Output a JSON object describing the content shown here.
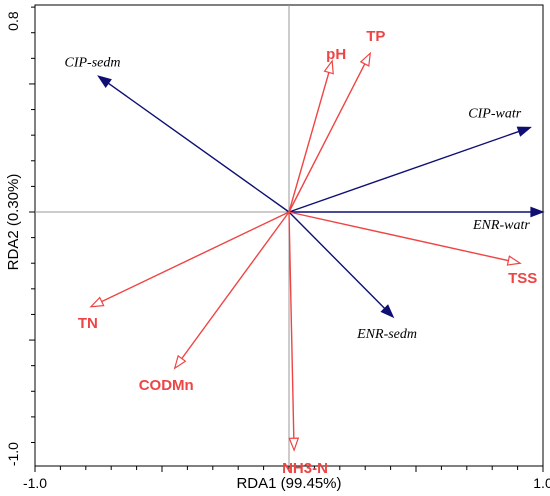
{
  "chart_data": {
    "type": "biplot",
    "xlabel": "RDA1 (99.45%)",
    "ylabel": "RDA2 (0.30%)",
    "xlim": [
      -1.0,
      1.0
    ],
    "ylim": [
      -1.0,
      0.8
    ],
    "x_tick_labels": [
      {
        "value": -1.0,
        "label": "-1.0"
      },
      {
        "value": 1.0,
        "label": "1.0"
      }
    ],
    "y_tick_labels": [
      {
        "value": 0.8,
        "label": "0.8"
      },
      {
        "value": -1.0,
        "label": "-1.0"
      }
    ],
    "species_color": "#0f0f73",
    "env_color": "#ef4444",
    "species": [
      {
        "name": "CIP-sedm",
        "x": -0.75,
        "y": 0.53
      },
      {
        "name": "CIP-watr",
        "x": 0.95,
        "y": 0.33
      },
      {
        "name": "ENR-watr",
        "x": 1.0,
        "y": 0.0
      },
      {
        "name": "ENR-sedm",
        "x": 0.41,
        "y": -0.41
      }
    ],
    "env": [
      {
        "name": "pH",
        "x": 0.17,
        "y": 0.59
      },
      {
        "name": "TP",
        "x": 0.32,
        "y": 0.62
      },
      {
        "name": "TSS",
        "x": 0.91,
        "y": -0.2
      },
      {
        "name": "TN",
        "x": -0.78,
        "y": -0.37
      },
      {
        "name": "CODMn",
        "x": -0.45,
        "y": -0.61
      },
      {
        "name": "NH3-N",
        "x": 0.02,
        "y": -0.93
      }
    ]
  }
}
